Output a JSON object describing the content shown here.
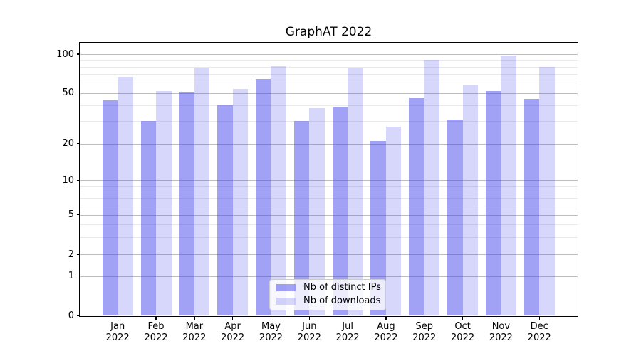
{
  "chart_data": {
    "type": "bar",
    "title": "GraphAT 2022",
    "categories": [
      "Jan",
      "Feb",
      "Mar",
      "Apr",
      "May",
      "Jun",
      "Jul",
      "Aug",
      "Sep",
      "Oct",
      "Nov",
      "Dec"
    ],
    "year_label": "2022",
    "series": [
      {
        "name": "Nb of distinct IPs",
        "values": [
          44,
          30,
          51,
          40,
          64,
          30,
          39,
          21,
          46,
          31,
          52,
          45
        ]
      },
      {
        "name": "Nb of downloads",
        "values": [
          67,
          52,
          79,
          54,
          81,
          38,
          78,
          27,
          90,
          57,
          98,
          80
        ]
      }
    ],
    "yscale": "symlog",
    "yticks": [
      100,
      50,
      20,
      10,
      5,
      2,
      1,
      0
    ],
    "yticks_minor": [
      3,
      4,
      6,
      7,
      8,
      9,
      30,
      40,
      60,
      70,
      80,
      90
    ],
    "ylim": [
      0,
      120
    ],
    "grid": true,
    "legend_position": "lower center"
  },
  "colors": {
    "bar_base": "#4444ee",
    "distinct_ips_fill": "rgba(68,68,238,0.5)",
    "downloads_fill": "rgba(68,68,238,0.21)",
    "grid_major": "#bdbdbd",
    "grid_minor": "#e9e9e9",
    "spine": "#000000",
    "text": "#000000",
    "legend_bg": "rgba(255,255,255,0.8)",
    "legend_border": "#cccccc",
    "background": "#ffffff"
  }
}
